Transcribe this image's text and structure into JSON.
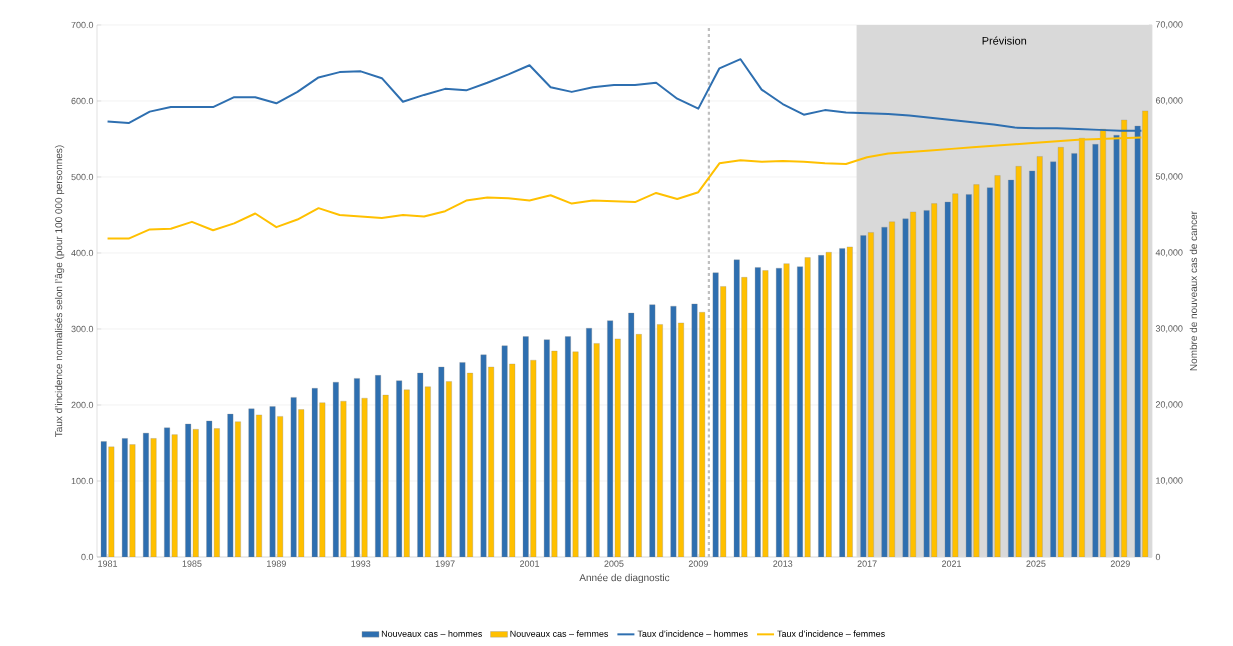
{
  "chart_data": {
    "type": "bar",
    "xlabel": "Année de diagnostic",
    "ylabel": "Taux d’incidence normalisés selon l’âge (pour 100 000 personnes)",
    "y2label": "Nombre de nouveaux cas de cancer",
    "x": [
      1981,
      1982,
      1983,
      1984,
      1985,
      1986,
      1987,
      1988,
      1989,
      1990,
      1991,
      1992,
      1993,
      1994,
      1995,
      1996,
      1997,
      1998,
      1999,
      2000,
      2001,
      2002,
      2003,
      2004,
      2005,
      2006,
      2007,
      2008,
      2009,
      2010,
      2011,
      2012,
      2013,
      2014,
      2015,
      2016,
      2017,
      2018,
      2019,
      2020,
      2021,
      2022,
      2023,
      2024,
      2025,
      2026,
      2027,
      2028,
      2029,
      2030
    ],
    "xlim": [
      1980.5,
      2030.5
    ],
    "xticks": [
      1981,
      1985,
      1989,
      1993,
      1997,
      2001,
      2005,
      2009,
      2013,
      2017,
      2021,
      2025,
      2029
    ],
    "series": [
      {
        "name": "Nouveaux cas – hommes",
        "axis": "y2",
        "color": "#2e6fb0",
        "values": [
          15200,
          15600,
          16300,
          17000,
          17500,
          17900,
          18800,
          19500,
          19800,
          21000,
          22200,
          23000,
          23500,
          23900,
          23200,
          24200,
          25000,
          25600,
          26600,
          27800,
          29000,
          28600,
          29000,
          30100,
          31100,
          32100,
          33200,
          33000,
          33300,
          37400,
          39100,
          38100,
          38000,
          38200,
          39700,
          40600,
          42300,
          43400,
          44500,
          45600,
          46700,
          47700,
          48600,
          49600,
          50800,
          52000,
          53100,
          54300,
          55500,
          56700
        ]
      },
      {
        "name": "Nouveaux cas – femmes",
        "axis": "y2",
        "color": "#ffc000",
        "values": [
          14500,
          14800,
          15600,
          16100,
          16800,
          16900,
          17800,
          18700,
          18500,
          19400,
          20300,
          20500,
          20900,
          21300,
          22000,
          22400,
          23100,
          24200,
          25000,
          25400,
          25900,
          27100,
          27000,
          28100,
          28700,
          29300,
          30600,
          30800,
          32200,
          35600,
          36800,
          37700,
          38600,
          39400,
          40100,
          40800,
          42700,
          44100,
          45400,
          46500,
          47800,
          49000,
          50200,
          51400,
          52700,
          53900,
          55100,
          56300,
          57500,
          58700
        ]
      },
      {
        "name": "Taux d’incidence – hommes",
        "type": "line",
        "axis": "y",
        "color": "#2e6fb0",
        "values": [
          573,
          571,
          586,
          592,
          592,
          592,
          605,
          605,
          597,
          612,
          631,
          638,
          639,
          630,
          599,
          608,
          616,
          614,
          624,
          635,
          647,
          618,
          612,
          618,
          621,
          621,
          624,
          603,
          590,
          643,
          655,
          615,
          596,
          582,
          588,
          585,
          584,
          583,
          581,
          578,
          575,
          572,
          569,
          565,
          564,
          564,
          563,
          562,
          561,
          561
        ]
      },
      {
        "name": "Taux d’incidence – femmes",
        "type": "line",
        "axis": "y",
        "color": "#ffc000",
        "values": [
          419,
          419,
          431,
          432,
          441,
          430,
          439,
          452,
          434,
          444,
          459,
          450,
          448,
          446,
          450,
          448,
          455,
          469,
          473,
          472,
          469,
          476,
          465,
          469,
          468,
          467,
          479,
          471,
          480,
          518,
          522,
          520,
          521,
          520,
          518,
          517,
          526,
          531,
          533,
          535,
          537,
          539,
          541,
          543,
          545,
          547,
          549,
          550,
          551,
          552
        ]
      }
    ],
    "ylim": [
      0,
      700
    ],
    "yticks": [
      {
        "value": 0,
        "label": "0.0"
      },
      {
        "value": 100,
        "label": "100.0"
      },
      {
        "value": 200,
        "label": "200.0"
      },
      {
        "value": 300,
        "label": "300.0"
      },
      {
        "value": 400,
        "label": "400.0"
      },
      {
        "value": 500,
        "label": "500.0"
      },
      {
        "value": 600,
        "label": "600.0"
      },
      {
        "value": 700,
        "label": "700.0"
      }
    ],
    "y2lim": [
      0,
      70000
    ],
    "y2ticks": [
      0,
      {
        "value": 10000,
        "label": "10,000"
      },
      {
        "value": 20000,
        "label": "20,000"
      },
      {
        "value": 30000,
        "label": "30,000"
      },
      {
        "value": 40000,
        "label": "40,000"
      },
      {
        "value": 50000,
        "label": "50,000"
      },
      {
        "value": 60000,
        "label": "60,000"
      },
      {
        "value": 70000,
        "label": "70,000"
      }
    ],
    "bands": [
      {
        "axis": "x",
        "from": 2016.5,
        "to": 2030.5,
        "label": "Prévision",
        "color": "#d9d9d9"
      }
    ],
    "ref_lines": [
      {
        "axis": "x",
        "value": 2009.5,
        "color": "#bfbfbf",
        "line_style": "dashed"
      }
    ],
    "grid": "y",
    "legend": "bottom",
    "marker": "none",
    "line_style": "solid"
  }
}
